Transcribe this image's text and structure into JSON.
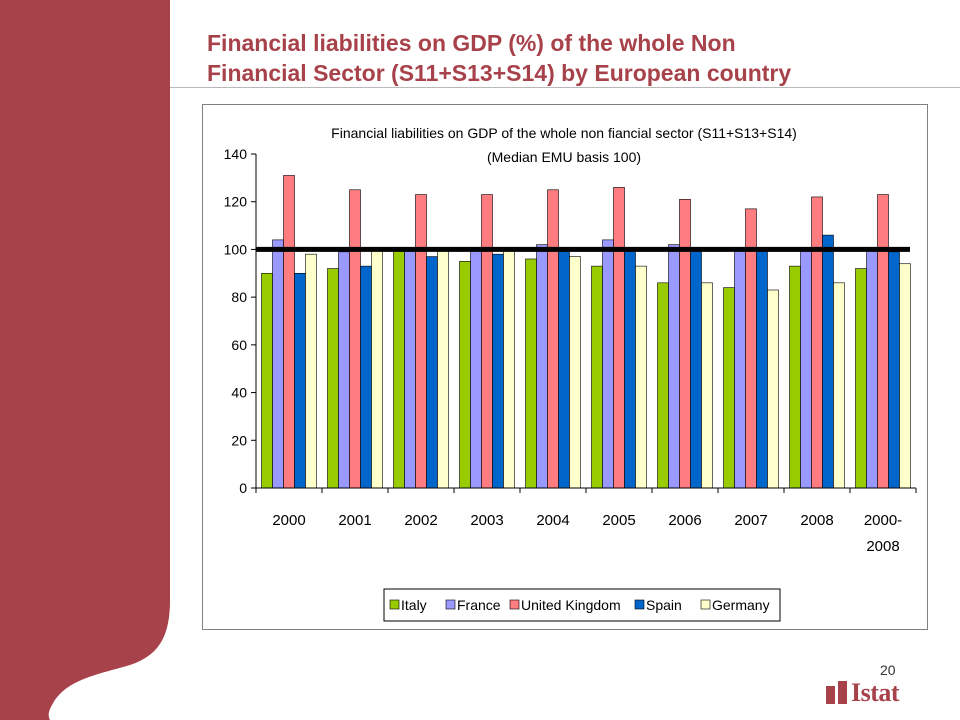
{
  "slide": {
    "title_line1": "Financial liabilities on GDP (%) of the whole Non",
    "title_line2": "Financial Sector (S11+S13+S14) by European country",
    "page_number": "20",
    "logo_text": "Istat",
    "accent_color": "#a8424a"
  },
  "chart_data": {
    "type": "bar",
    "title": "Financial liabilities on GDP of the whole non fiancial sector (S11+S13+S14)",
    "subtitle": "(Median EMU basis 100)",
    "categories": [
      "2000",
      "2001",
      "2002",
      "2003",
      "2004",
      "2005",
      "2006",
      "2007",
      "2008",
      "2000-\n2008"
    ],
    "category_labels": [
      [
        "2000"
      ],
      [
        "2001"
      ],
      [
        "2002"
      ],
      [
        "2003"
      ],
      [
        "2004"
      ],
      [
        "2005"
      ],
      [
        "2006"
      ],
      [
        "2007"
      ],
      [
        "2008"
      ],
      [
        "2000-",
        "2008"
      ]
    ],
    "series": [
      {
        "name": "Italy",
        "color": "#99cc00",
        "values": [
          90,
          92,
          100,
          95,
          96,
          93,
          86,
          84,
          93,
          92
        ]
      },
      {
        "name": "France",
        "color": "#9999ff",
        "values": [
          104,
          99,
          100,
          100,
          102,
          104,
          102,
          100,
          100,
          100
        ]
      },
      {
        "name": "United Kingdom",
        "color": "#ff7c80",
        "values": [
          131,
          125,
          123,
          123,
          125,
          126,
          121,
          117,
          122,
          123
        ]
      },
      {
        "name": "Spain",
        "color": "#0066cc",
        "values": [
          90,
          93,
          97,
          98,
          100,
          100,
          100,
          100,
          106,
          99
        ]
      },
      {
        "name": "Germany",
        "color": "#ffffcc",
        "values": [
          98,
          100,
          100,
          100,
          97,
          93,
          86,
          83,
          86,
          94
        ]
      }
    ],
    "reference_line": 100,
    "ylim": [
      0,
      140
    ],
    "yticks": [
      0,
      20,
      40,
      60,
      80,
      100,
      120,
      140
    ],
    "legend_position": "bottom",
    "grid": false
  }
}
